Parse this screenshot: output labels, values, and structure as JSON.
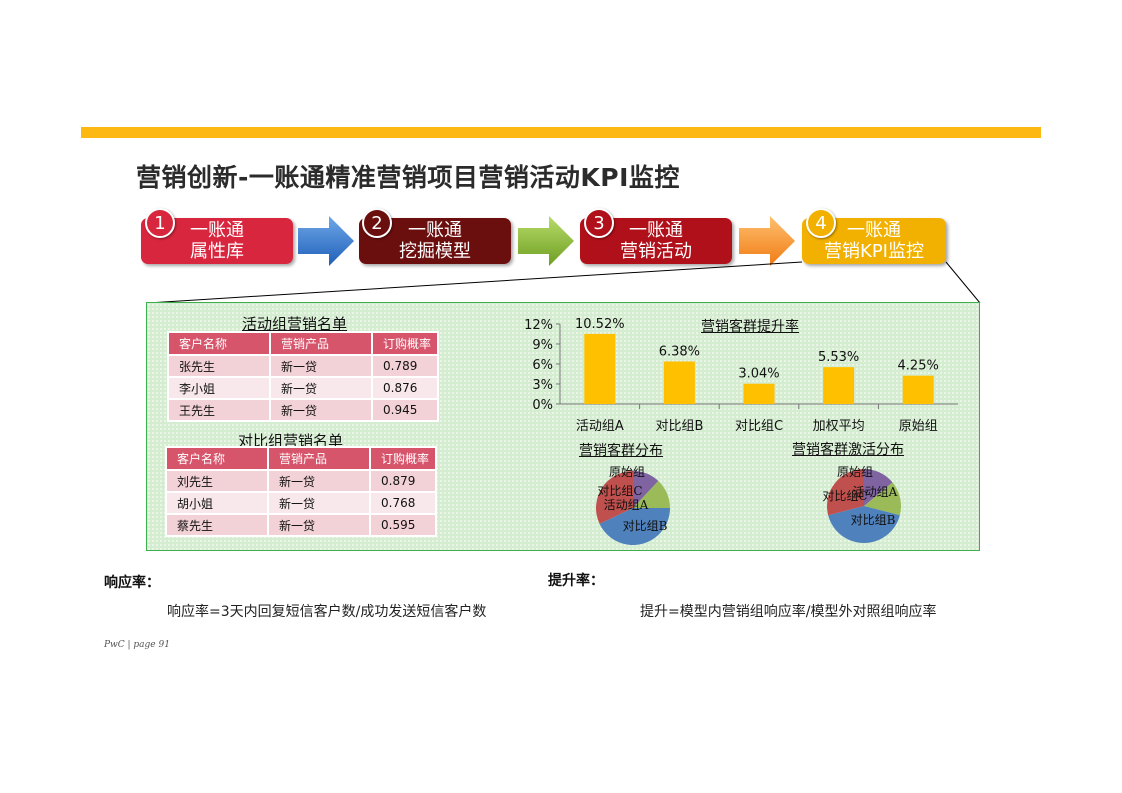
{
  "title": "营销创新-一账通精准营销项目营销活动KPI监控",
  "steps": [
    {
      "num": "1",
      "line1": "一账通",
      "line2": "属性库",
      "color": "#D7263D"
    },
    {
      "num": "2",
      "line1": "一账通",
      "line2": "挖掘模型",
      "color": "#6B0E0E"
    },
    {
      "num": "3",
      "line1": "一账通",
      "line2": "营销活动",
      "color": "#B0101A"
    },
    {
      "num": "4",
      "line1": "一账通",
      "line2": "营销KPI监控",
      "color": "#F2B100"
    }
  ],
  "active_table": {
    "title": "活动组营销名单",
    "headers": [
      "客户名称",
      "营销产品",
      "订购概率"
    ],
    "rows": [
      [
        "张先生",
        "新一贷",
        "0.789"
      ],
      [
        "李小姐",
        "新一贷",
        "0.876"
      ],
      [
        "王先生",
        "新一贷",
        "0.945"
      ]
    ]
  },
  "control_table": {
    "title": "对比组营销名单",
    "headers": [
      "客户名称",
      "营销产品",
      "订购概率"
    ],
    "rows": [
      [
        "刘先生",
        "新一贷",
        "0.879"
      ],
      [
        "胡小姐",
        "新一贷",
        "0.768"
      ],
      [
        "蔡先生",
        "新一贷",
        "0.595"
      ]
    ]
  },
  "chart_data": [
    {
      "type": "bar",
      "title": "营销客群提升率",
      "categories": [
        "活动组A",
        "对比组B",
        "对比组C",
        "加权平均",
        "原始组"
      ],
      "values": [
        10.52,
        6.38,
        3.04,
        5.53,
        4.25
      ],
      "value_labels": [
        "10.52%",
        "6.38%",
        "3.04%",
        "5.53%",
        "4.25%"
      ],
      "y_ticks": [
        "0%",
        "3%",
        "6%",
        "9%",
        "12%"
      ],
      "ylim": [
        0,
        12
      ],
      "color": "#FFC000"
    },
    {
      "type": "pie",
      "title": "营销客群分布",
      "labels": [
        "原始组",
        "对比组C",
        "活动组A",
        "对比组B"
      ],
      "values": [
        12,
        13,
        43,
        32
      ],
      "colors": [
        "#8064A2",
        "#9BBB59",
        "#4F81BD",
        "#C0504D"
      ]
    },
    {
      "type": "pie",
      "title": "营销客群激活分布",
      "labels": [
        "原始组",
        "对比组C",
        "活动组A",
        "对比组B"
      ],
      "values": [
        14,
        15,
        42,
        29
      ],
      "colors": [
        "#8064A2",
        "#9BBB59",
        "#4F81BD",
        "#C0504D"
      ]
    }
  ],
  "response_rate": {
    "label": "响应率：",
    "formula": "响应率=3天内回复短信客户数/成功发送短信客户数"
  },
  "lift_rate": {
    "label": "提升率：",
    "formula": "提升=模型内营销组响应率/模型外对照组响应率"
  },
  "footer": "PwC  |  page 91"
}
